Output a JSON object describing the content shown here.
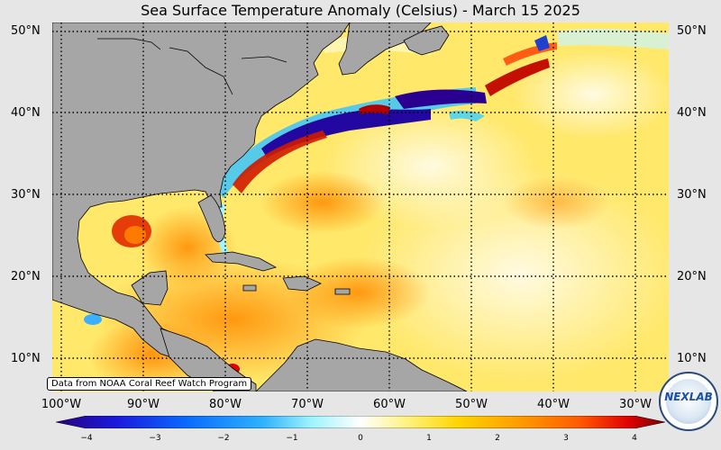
{
  "title": "Sea Surface Temperature Anomaly (Celsius) - March 15 2025",
  "lat_labels": [
    "50°N",
    "40°N",
    "30°N",
    "20°N",
    "10°N"
  ],
  "lon_labels": [
    "100°W",
    "90°W",
    "80°W",
    "70°W",
    "60°W",
    "50°W",
    "40°W",
    "30°W"
  ],
  "credit": "Data from NOAA Coral Reef Watch Program",
  "colorbar": {
    "ticks": [
      "−4",
      "−3",
      "−2",
      "−1",
      "0",
      "1",
      "2",
      "3",
      "4"
    ],
    "colors": [
      "#2a0080",
      "#1a1adc",
      "#0a6eff",
      "#2fb2ff",
      "#9ff4ff",
      "#ffffff",
      "#fff27a",
      "#ffd500",
      "#ff9d00",
      "#ff5a00",
      "#e00000",
      "#7a0000"
    ]
  },
  "logo_text": "NEXLAB",
  "colors": {
    "land": "#a6a6a6",
    "ocean_base": "#ffe86a",
    "background": "#e6e6e6"
  }
}
